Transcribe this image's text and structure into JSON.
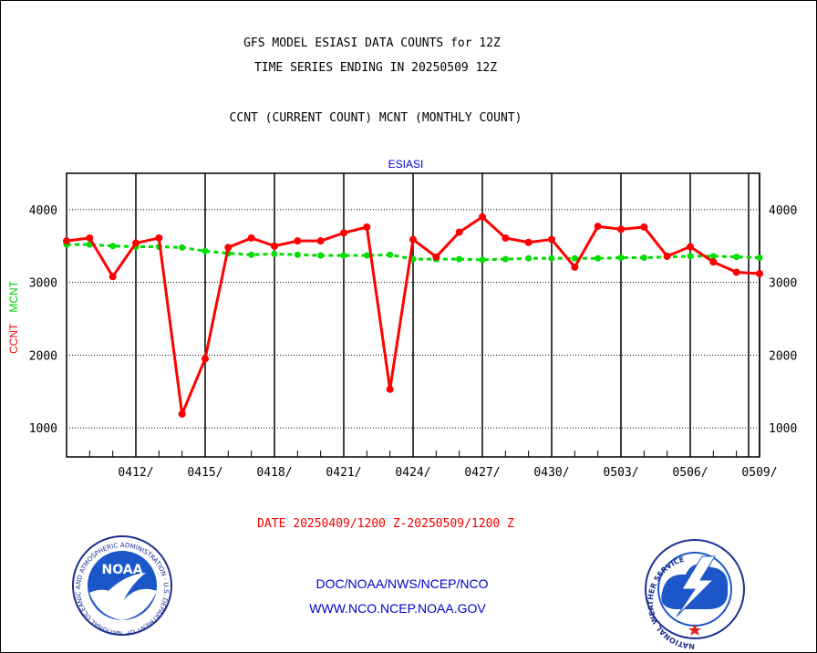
{
  "header": {
    "title_line1": "GFS MODEL ESIASI DATA COUNTS for 12Z",
    "title_line2": "TIME SERIES ENDING IN 20250509 12Z",
    "subtitle": "CCNT (CURRENT COUNT) MCNT (MONTHLY COUNT)"
  },
  "footer": {
    "date_range": "DATE 20250409/1200 Z-20250509/1200 Z",
    "org_line": "DOC/NOAA/NWS/NCEP/NCO",
    "url_line": "WWW.NCO.NCEP.NOAA.GOV"
  },
  "logos": {
    "noaa_text": "NOAA",
    "noaa_ring_text": "NATIONAL OCEANIC AND ATMOSPHERIC ADMINISTRATION · U.S. DEPARTMENT OF COMMERCE ·",
    "nws_ring_text": "NATIONAL WEATHER SERVICE"
  },
  "colors": {
    "ccnt": "#ff0000",
    "mcnt": "#00dd00",
    "plot_title": "#0000cc",
    "axis": "#000000"
  },
  "chart_data": {
    "type": "line",
    "title": "ESIASI",
    "ylabel_ccnt": "CCNT",
    "ylabel_mcnt": "MCNT",
    "x_tick_labels": [
      "0412/",
      "0415/",
      "0418/",
      "0421/",
      "0424/",
      "0427/",
      "0430/",
      "0503/",
      "0506/",
      "0509/"
    ],
    "y_ticks": [
      1000,
      2000,
      3000,
      4000
    ],
    "ylim": [
      600,
      4500
    ],
    "x": [
      "0409",
      "0410",
      "0411",
      "0412",
      "0413",
      "0414",
      "0415",
      "0416",
      "0417",
      "0418",
      "0419",
      "0420",
      "0421",
      "0422",
      "0423",
      "0424",
      "0425",
      "0426",
      "0427",
      "0428",
      "0429",
      "0430",
      "0501",
      "0502",
      "0503",
      "0504",
      "0505",
      "0506",
      "0507",
      "0508",
      "0509"
    ],
    "series": [
      {
        "name": "CCNT",
        "values": [
          3570,
          3610,
          3080,
          3540,
          3610,
          1190,
          1950,
          3480,
          3610,
          3500,
          3570,
          3570,
          3680,
          3760,
          1530,
          3590,
          3350,
          3690,
          3900,
          3610,
          3550,
          3590,
          3210,
          3770,
          3730,
          3760,
          3360,
          3490,
          3280,
          3140,
          3120
        ]
      },
      {
        "name": "MCNT",
        "values": [
          3520,
          3520,
          3500,
          3490,
          3490,
          3480,
          3430,
          3400,
          3380,
          3390,
          3380,
          3370,
          3370,
          3370,
          3380,
          3320,
          3320,
          3320,
          3310,
          3320,
          3330,
          3330,
          3330,
          3330,
          3340,
          3340,
          3350,
          3360,
          3360,
          3350,
          3340
        ]
      }
    ]
  }
}
